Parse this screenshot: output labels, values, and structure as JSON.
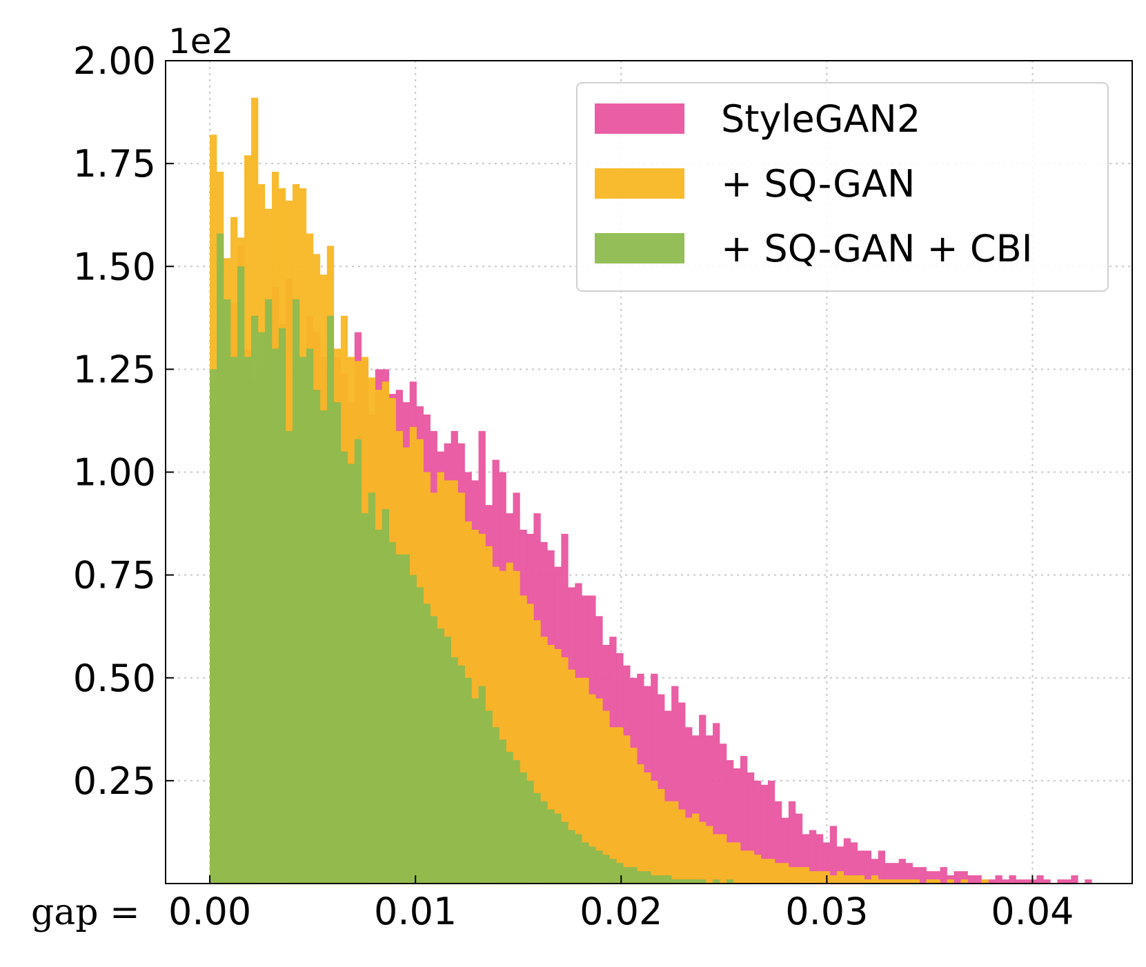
{
  "chart_data": {
    "type": "bar",
    "subtype": "overlaid-histogram",
    "title": "",
    "xlabel": "gap =",
    "ylabel": "",
    "y_offset_label": "1e2",
    "xlim": [
      -0.00215,
      0.04485
    ],
    "ylim": [
      0,
      2.0
    ],
    "x_ticks": [
      0.0,
      0.01,
      0.02,
      0.03,
      0.04
    ],
    "x_tick_labels": [
      "0.00",
      "0.01",
      "0.02",
      "0.03",
      "0.04"
    ],
    "y_ticks": [
      0.25,
      0.5,
      0.75,
      1.0,
      1.25,
      1.5,
      1.75,
      2.0
    ],
    "y_tick_labels": [
      "0.25",
      "0.50",
      "0.75",
      "1.00",
      "1.25",
      "1.50",
      "1.75",
      "2.00"
    ],
    "grid": true,
    "legend_position": "upper-right",
    "bin_start": 0.0,
    "bin_width": 0.000335,
    "series": [
      {
        "name": "StyleGAN2",
        "color": "#E8559F",
        "values": [
          1.22,
          1.53,
          1.35,
          1.41,
          1.55,
          1.3,
          1.22,
          1.25,
          1.41,
          1.45,
          1.36,
          1.47,
          1.3,
          1.27,
          1.38,
          1.34,
          1.28,
          1.25,
          1.28,
          1.24,
          1.17,
          1.34,
          1.27,
          1.14,
          1.25,
          1.25,
          1.19,
          1.2,
          1.17,
          1.22,
          1.16,
          1.14,
          1.1,
          1.05,
          1.07,
          1.1,
          1.07,
          1.0,
          0.98,
          1.1,
          0.92,
          1.03,
          1.0,
          0.9,
          0.95,
          0.86,
          0.85,
          0.9,
          0.83,
          0.81,
          0.77,
          0.85,
          0.72,
          0.73,
          0.7,
          0.7,
          0.65,
          0.58,
          0.6,
          0.56,
          0.53,
          0.5,
          0.51,
          0.48,
          0.51,
          0.46,
          0.42,
          0.48,
          0.44,
          0.38,
          0.36,
          0.41,
          0.36,
          0.39,
          0.34,
          0.3,
          0.28,
          0.31,
          0.27,
          0.25,
          0.24,
          0.25,
          0.2,
          0.16,
          0.2,
          0.17,
          0.12,
          0.13,
          0.12,
          0.1,
          0.14,
          0.09,
          0.11,
          0.1,
          0.08,
          0.08,
          0.06,
          0.08,
          0.05,
          0.05,
          0.06,
          0.05,
          0.04,
          0.04,
          0.03,
          0.03,
          0.04,
          0.02,
          0.03,
          0.03,
          0.02,
          0.02,
          0.01,
          0.01,
          0.02,
          0.01,
          0.02,
          0.01,
          0.01,
          0.01,
          0.02,
          0.01,
          0.0,
          0.01,
          0.01,
          0.02,
          0.0,
          0.01
        ]
      },
      {
        "name": "+ SQ-GAN",
        "color": "#F8B724",
        "values": [
          1.82,
          1.73,
          1.52,
          1.62,
          1.57,
          1.77,
          1.91,
          1.7,
          1.64,
          1.73,
          1.69,
          1.66,
          1.7,
          1.69,
          1.58,
          1.53,
          1.48,
          1.55,
          1.3,
          1.38,
          1.28,
          1.27,
          1.28,
          1.23,
          1.2,
          1.22,
          1.18,
          1.1,
          1.06,
          1.11,
          1.08,
          1.0,
          0.95,
          1.0,
          0.98,
          0.98,
          0.95,
          0.88,
          0.86,
          0.85,
          0.82,
          0.77,
          0.76,
          0.78,
          0.76,
          0.7,
          0.68,
          0.64,
          0.6,
          0.58,
          0.57,
          0.55,
          0.52,
          0.5,
          0.5,
          0.46,
          0.45,
          0.42,
          0.38,
          0.38,
          0.36,
          0.33,
          0.29,
          0.27,
          0.25,
          0.23,
          0.2,
          0.2,
          0.18,
          0.16,
          0.17,
          0.15,
          0.14,
          0.12,
          0.12,
          0.1,
          0.1,
          0.08,
          0.08,
          0.07,
          0.06,
          0.06,
          0.05,
          0.05,
          0.04,
          0.04,
          0.04,
          0.03,
          0.03,
          0.03,
          0.02,
          0.03,
          0.02,
          0.02,
          0.02,
          0.01,
          0.02,
          0.01,
          0.01,
          0.01,
          0.01,
          0.01,
          0.01,
          0.0,
          0.01,
          0.01,
          0.0,
          0.01,
          0.0,
          0.01,
          0.0,
          0.0,
          0.01,
          0.0,
          0.0,
          0.0,
          0.0,
          0.0,
          0.0,
          0.0,
          0.0,
          0.0,
          0.0,
          0.0,
          0.0,
          0.0,
          0.0,
          0.0
        ]
      },
      {
        "name": "+ SQ-GAN + CBI",
        "color": "#8DBB4F",
        "values": [
          1.25,
          1.58,
          1.42,
          1.28,
          1.5,
          1.28,
          1.38,
          1.34,
          1.42,
          1.3,
          1.35,
          1.1,
          1.42,
          1.28,
          1.3,
          1.2,
          1.15,
          1.38,
          1.17,
          1.05,
          1.02,
          1.08,
          0.9,
          0.95,
          0.86,
          0.91,
          0.83,
          0.8,
          0.8,
          0.75,
          0.72,
          0.68,
          0.65,
          0.62,
          0.6,
          0.55,
          0.53,
          0.5,
          0.45,
          0.48,
          0.42,
          0.38,
          0.35,
          0.32,
          0.3,
          0.27,
          0.25,
          0.22,
          0.2,
          0.18,
          0.17,
          0.15,
          0.13,
          0.12,
          0.1,
          0.09,
          0.08,
          0.07,
          0.06,
          0.05,
          0.04,
          0.04,
          0.03,
          0.03,
          0.02,
          0.02,
          0.02,
          0.01,
          0.01,
          0.01,
          0.01,
          0.01,
          0.0,
          0.01,
          0.0,
          0.01,
          0.0,
          0.0,
          0.0,
          0.0,
          0.0,
          0.0,
          0.0,
          0.0,
          0.0,
          0.0,
          0.0,
          0.0,
          0.0,
          0.0,
          0.0,
          0.0,
          0.0,
          0.0,
          0.0,
          0.0,
          0.0,
          0.0,
          0.0,
          0.0,
          0.0,
          0.0,
          0.0,
          0.0,
          0.0,
          0.0,
          0.0,
          0.0,
          0.0,
          0.0,
          0.0,
          0.0,
          0.0,
          0.0,
          0.0,
          0.0,
          0.0,
          0.0,
          0.0,
          0.0,
          0.0,
          0.0,
          0.0,
          0.0,
          0.0,
          0.0,
          0.0,
          0.0
        ]
      }
    ]
  }
}
